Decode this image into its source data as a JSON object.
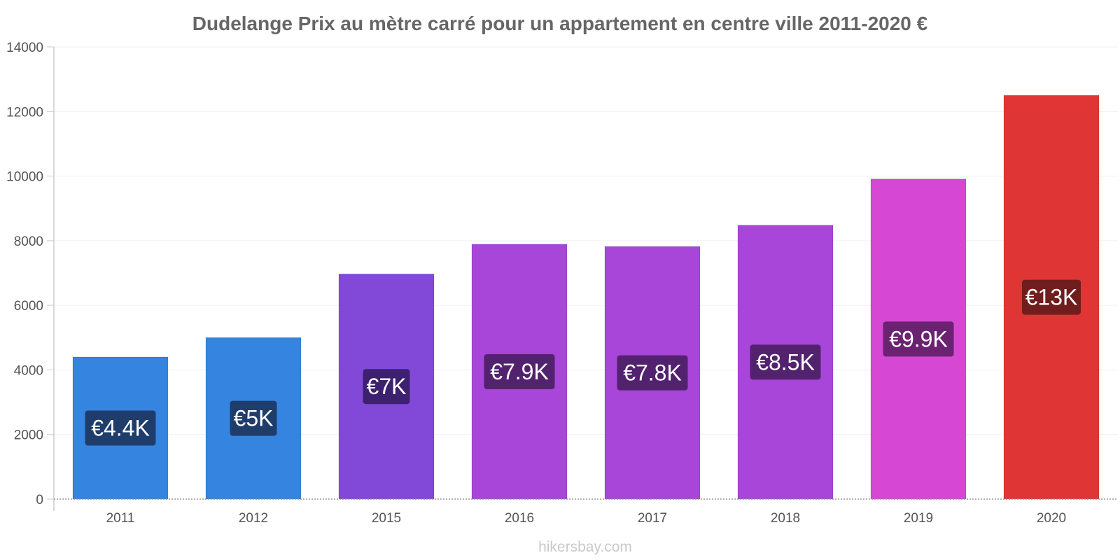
{
  "chart_data": {
    "type": "bar",
    "title": "Dudelange Prix au mètre carré pour un appartement en centre ville 2011-2020 €",
    "categories": [
      "2011",
      "2012",
      "2015",
      "2016",
      "2017",
      "2018",
      "2019",
      "2020"
    ],
    "values": [
      4400,
      5000,
      6970,
      7890,
      7820,
      8480,
      9910,
      12500
    ],
    "data_labels": [
      "€4.4K",
      "€5K",
      "€7K",
      "€7.9K",
      "€7.8K",
      "€8.5K",
      "€9.9K",
      "€13K"
    ],
    "bar_colors": [
      "#3584e0",
      "#3584e0",
      "#8249d9",
      "#a746d9",
      "#a746d9",
      "#a746d9",
      "#d648d4",
      "#e03535"
    ],
    "label_bg_colors": [
      "#1f3d6b",
      "#1f3d6b",
      "#3d2170",
      "#52226e",
      "#52226e",
      "#52226e",
      "#6b2270",
      "#701d1d"
    ],
    "yticks": [
      0,
      2000,
      4000,
      6000,
      8000,
      10000,
      12000,
      14000
    ],
    "ylim": [
      0,
      14000
    ],
    "xlabel": "",
    "ylabel": "",
    "grid": true,
    "legend": "none"
  },
  "source": "hikersbay.com"
}
